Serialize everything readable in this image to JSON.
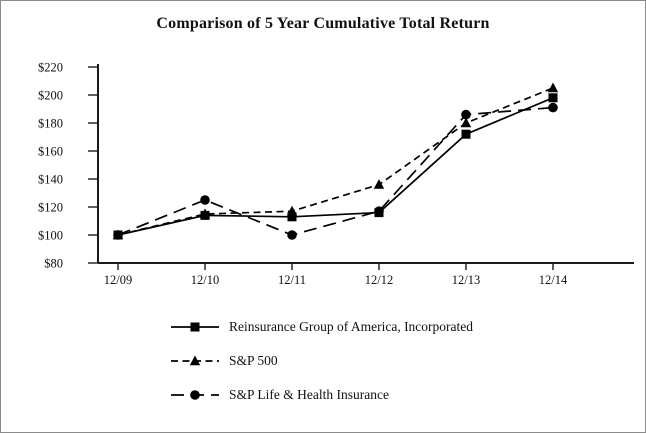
{
  "title": "Comparison of 5 Year Cumulative Total Return",
  "chart_data": {
    "type": "line",
    "title": "Comparison of 5 Year Cumulative Total Return",
    "categories": [
      "12/09",
      "12/10",
      "12/11",
      "12/12",
      "12/13",
      "12/14"
    ],
    "series": [
      {
        "name": "Reinsurance Group of America, Incorporated",
        "marker": "square",
        "line": "solid",
        "values": [
          100,
          114,
          113,
          116,
          172,
          198
        ]
      },
      {
        "name": "S&P 500",
        "marker": "triangle",
        "line": "dashed",
        "values": [
          100,
          115,
          117,
          136,
          180,
          205
        ]
      },
      {
        "name": "S&P Life & Health Insurance",
        "marker": "circle",
        "line": "long-dash",
        "values": [
          100,
          125,
          100,
          117,
          186,
          191
        ]
      }
    ],
    "ylim": [
      80,
      220
    ],
    "ytick_interval": 20,
    "ytick_prefix": "$",
    "xlabel": "",
    "ylabel": "",
    "grid": false,
    "legend_position": "bottom-left",
    "line_color": "#000000",
    "axis_color": "#1a1a1a"
  }
}
